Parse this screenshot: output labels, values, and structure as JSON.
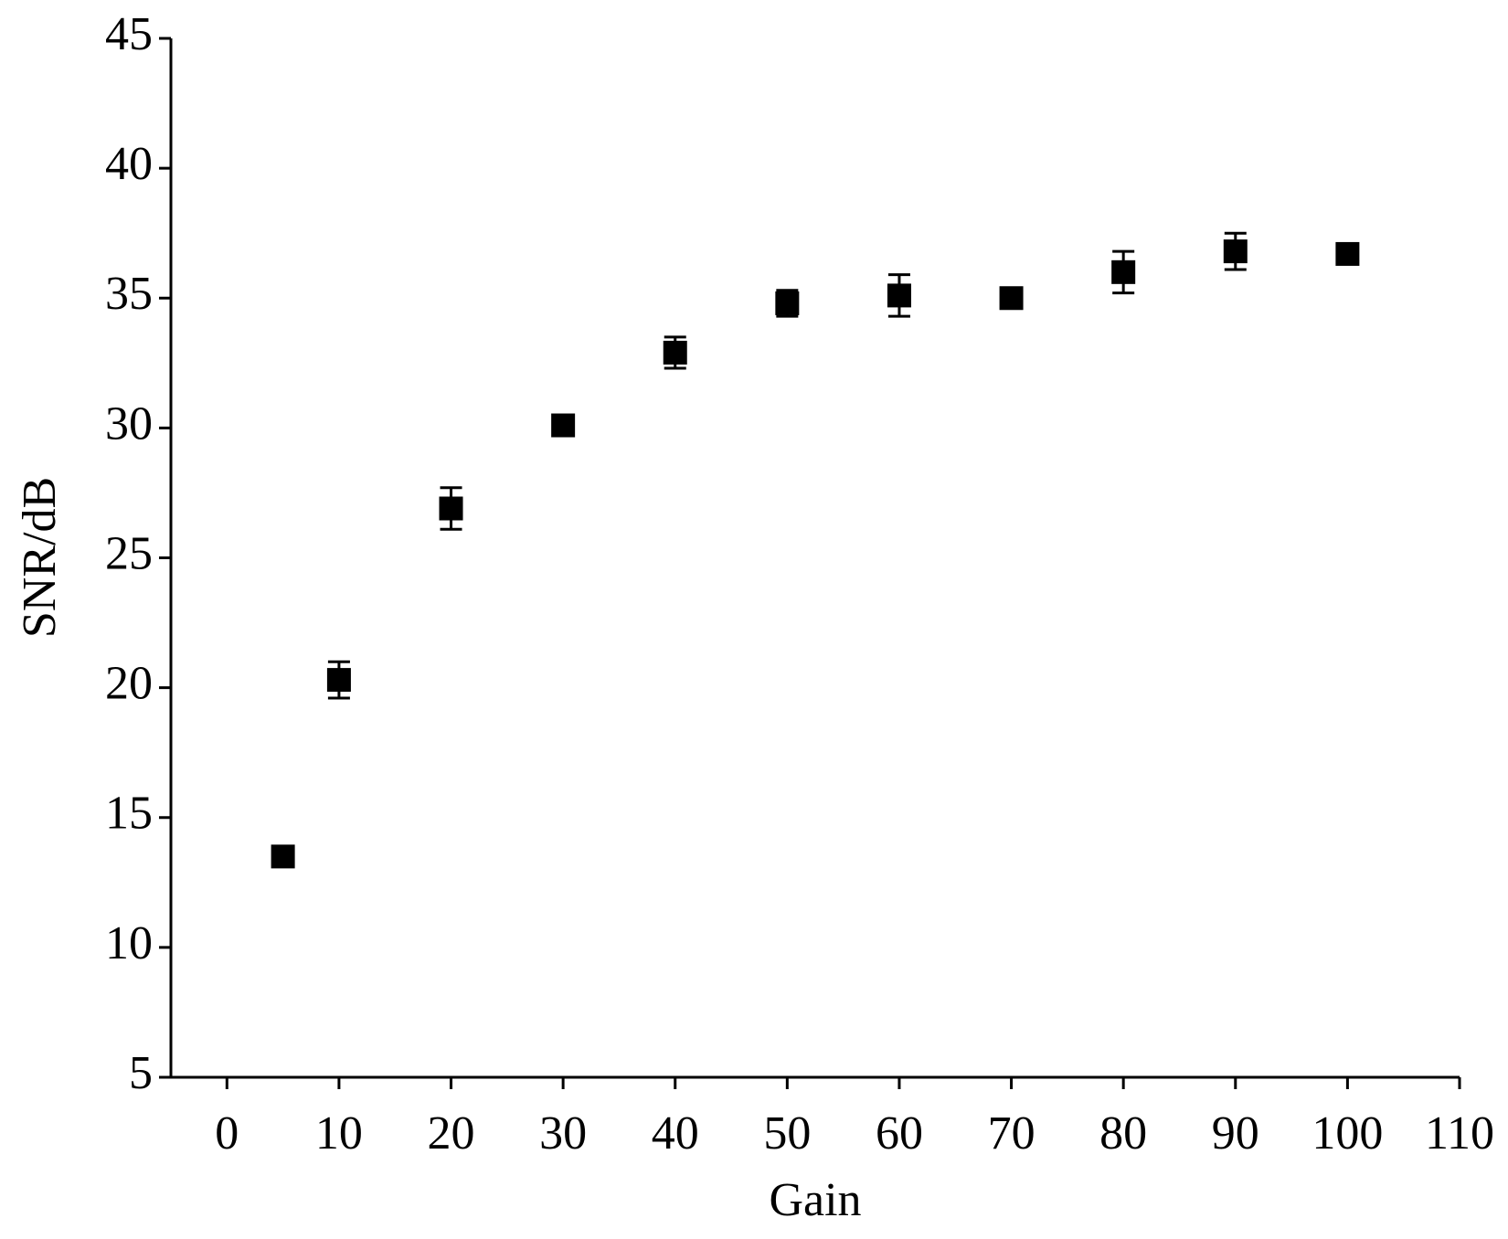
{
  "chart_data": {
    "type": "scatter",
    "x_label": "Gain",
    "y_label": "SNR/dB",
    "x": [
      5,
      10,
      20,
      30,
      40,
      50,
      60,
      70,
      80,
      90,
      100
    ],
    "values": [
      13.5,
      20.3,
      26.9,
      30.1,
      32.9,
      34.8,
      35.1,
      35.0,
      36.0,
      36.8,
      36.7
    ],
    "errors": [
      0.3,
      0.7,
      0.8,
      0.3,
      0.6,
      0.5,
      0.8,
      0.2,
      0.8,
      0.7,
      0.2
    ],
    "color": "#000000",
    "xlim": [
      -5,
      110
    ],
    "xticks": [
      0,
      10,
      20,
      30,
      40,
      50,
      60,
      70,
      80,
      90,
      100,
      110
    ],
    "ylim": [
      5,
      45
    ],
    "yticks": [
      5,
      10,
      15,
      20,
      25,
      30,
      35,
      40,
      45
    ]
  }
}
